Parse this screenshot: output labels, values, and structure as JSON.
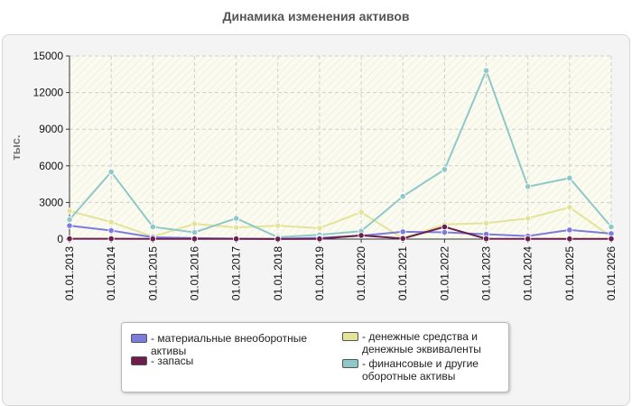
{
  "chart_data": {
    "type": "line",
    "title": "Динамика изменения активов",
    "ylabel": "тыс.",
    "xlabel": "",
    "ylim": [
      0,
      15000
    ],
    "yticks": [
      0,
      3000,
      6000,
      9000,
      12000,
      15000
    ],
    "grid": true,
    "legend_position": "bottom",
    "categories": [
      "01.01.2013",
      "01.01.2014",
      "01.01.2015",
      "01.01.2016",
      "01.01.2017",
      "01.01.2018",
      "01.01.2019",
      "01.01.2020",
      "01.01.2021",
      "01.01.2022",
      "01.01.2023",
      "01.01.2024",
      "01.01.2025",
      "01.01.2026"
    ],
    "series": [
      {
        "name": "- материальные внеоборотные активы",
        "color": "#7b7be0",
        "values": [
          1100,
          700,
          150,
          80,
          40,
          20,
          100,
          280,
          600,
          550,
          400,
          250,
          750,
          450
        ]
      },
      {
        "name": "- запасы",
        "color": "#6a1f4d",
        "values": [
          30,
          30,
          20,
          20,
          20,
          10,
          20,
          300,
          50,
          1000,
          30,
          20,
          20,
          20
        ]
      },
      {
        "name": "- денежные средства и денежные эквиваленты",
        "color": "#e3e39a",
        "values": [
          2300,
          1400,
          200,
          1250,
          950,
          1100,
          900,
          2200,
          50,
          1200,
          1300,
          1700,
          2600,
          200
        ]
      },
      {
        "name": "- финансовые и другие оборотные активы",
        "color": "#8fc8c8",
        "values": [
          1600,
          5500,
          1000,
          550,
          1700,
          150,
          350,
          650,
          3500,
          5700,
          13800,
          4300,
          5000,
          1000
        ]
      }
    ]
  }
}
